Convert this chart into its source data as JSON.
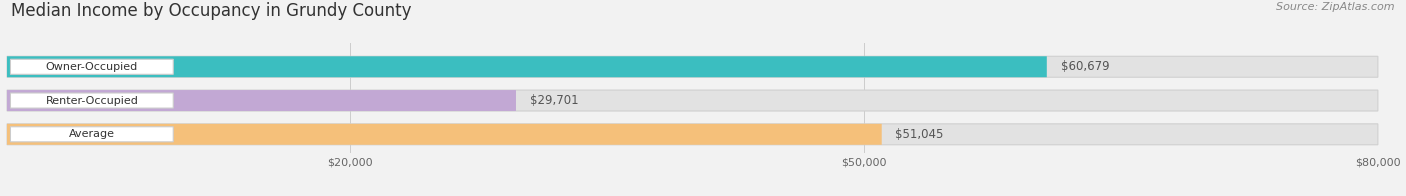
{
  "title": "Median Income by Occupancy in Grundy County",
  "source": "Source: ZipAtlas.com",
  "categories": [
    "Owner-Occupied",
    "Renter-Occupied",
    "Average"
  ],
  "values": [
    60679,
    29701,
    51045
  ],
  "labels": [
    "$60,679",
    "$29,701",
    "$51,045"
  ],
  "bar_colors": [
    "#3bbec0",
    "#c2a8d4",
    "#f5c07a"
  ],
  "background_color": "#f2f2f2",
  "bar_bg_color": "#e2e2e2",
  "xlim": [
    0,
    80000
  ],
  "xticks": [
    20000,
    50000,
    80000
  ],
  "xtick_labels": [
    "$20,000",
    "$50,000",
    "$80,000"
  ],
  "title_fontsize": 12,
  "source_fontsize": 8,
  "label_fontsize": 8.5,
  "cat_fontsize": 8
}
